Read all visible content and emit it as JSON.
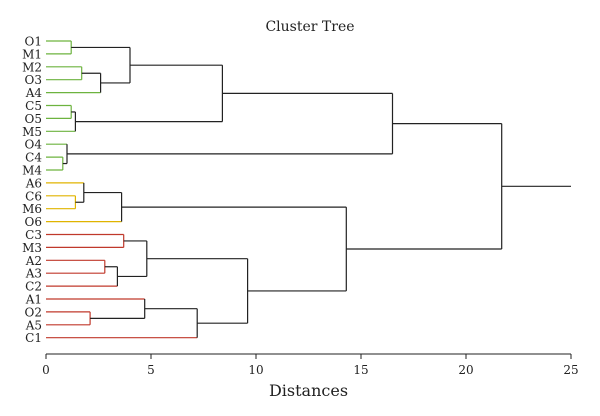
{
  "chart_data": {
    "type": "dendrogram",
    "title": "Cluster Tree",
    "xlabel": "Distances",
    "xlim": [
      0,
      25
    ],
    "xticks": [
      0,
      5,
      10,
      15,
      20,
      25
    ],
    "leaves": [
      {
        "name": "O1",
        "color": "#6db33f"
      },
      {
        "name": "M1",
        "color": "#6db33f"
      },
      {
        "name": "M2",
        "color": "#6db33f"
      },
      {
        "name": "O3",
        "color": "#6db33f"
      },
      {
        "name": "A4",
        "color": "#6db33f"
      },
      {
        "name": "C5",
        "color": "#6db33f"
      },
      {
        "name": "O5",
        "color": "#6db33f"
      },
      {
        "name": "M5",
        "color": "#6db33f"
      },
      {
        "name": "O4",
        "color": "#6db33f"
      },
      {
        "name": "C4",
        "color": "#6db33f"
      },
      {
        "name": "M4",
        "color": "#6db33f"
      },
      {
        "name": "A6",
        "color": "#e0b400"
      },
      {
        "name": "C6",
        "color": "#e0b400"
      },
      {
        "name": "M6",
        "color": "#e0b400"
      },
      {
        "name": "O6",
        "color": "#e0b400"
      },
      {
        "name": "C3",
        "color": "#c0392b"
      },
      {
        "name": "M3",
        "color": "#c0392b"
      },
      {
        "name": "A2",
        "color": "#c0392b"
      },
      {
        "name": "A3",
        "color": "#c0392b"
      },
      {
        "name": "C2",
        "color": "#c0392b"
      },
      {
        "name": "A1",
        "color": "#c0392b"
      },
      {
        "name": "O2",
        "color": "#c0392b"
      },
      {
        "name": "A5",
        "color": "#c0392b"
      },
      {
        "name": "C1",
        "color": "#c0392b"
      }
    ],
    "merges": [
      {
        "left": "O1",
        "right": "M1",
        "distance": 1.2
      },
      {
        "left": "M2",
        "right": "O3",
        "distance": 1.7
      },
      {
        "left": "M2+O3",
        "right": "A4",
        "distance": 2.6
      },
      {
        "left": "O1+M1",
        "right": "M2+O3+A4",
        "distance": 4.0
      },
      {
        "left": "C5",
        "right": "O5",
        "distance": 1.2
      },
      {
        "left": "C5+O5",
        "right": "M5",
        "distance": 1.4
      },
      {
        "left": "O1..A4",
        "right": "C5+O5+M5",
        "distance": 8.4
      },
      {
        "left": "C4",
        "right": "M4",
        "distance": 0.8
      },
      {
        "left": "O4",
        "right": "C4+M4",
        "distance": 1.0
      },
      {
        "left": "O1..M5",
        "right": "O4+C4+M4",
        "distance": 16.5
      },
      {
        "left": "C6",
        "right": "M6",
        "distance": 1.4
      },
      {
        "left": "A6",
        "right": "C6+M6",
        "distance": 1.8
      },
      {
        "left": "A6+C6+M6",
        "right": "O6",
        "distance": 3.6
      },
      {
        "left": "C3",
        "right": "M3",
        "distance": 3.7
      },
      {
        "left": "A2",
        "right": "A3",
        "distance": 2.8
      },
      {
        "left": "A2+A3",
        "right": "C2",
        "distance": 3.4
      },
      {
        "left": "C3+M3",
        "right": "A2+A3+C2",
        "distance": 4.8
      },
      {
        "left": "O2",
        "right": "A5",
        "distance": 2.1
      },
      {
        "left": "A1",
        "right": "O2+A5",
        "distance": 4.7
      },
      {
        "left": "A1+O2+A5",
        "right": "C1",
        "distance": 7.2
      },
      {
        "left": "C3..C2",
        "right": "A1..C1",
        "distance": 9.6
      },
      {
        "left": "A6..O6",
        "right": "C3..C1",
        "distance": 14.3
      },
      {
        "left": "O1..M4",
        "right": "A6..C1",
        "distance": 21.7
      },
      {
        "left": "root",
        "right": "",
        "distance": 25.0
      }
    ]
  }
}
